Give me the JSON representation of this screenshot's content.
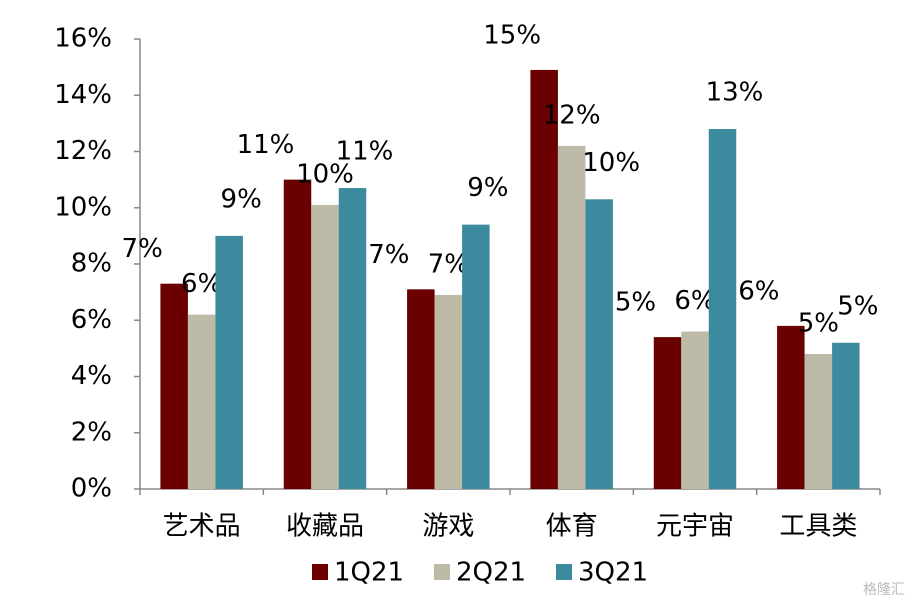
{
  "chart_data": {
    "type": "bar",
    "categories": [
      "艺术品",
      "收藏品",
      "游戏",
      "体育",
      "元宇宙",
      "工具类"
    ],
    "series": [
      {
        "name": "1Q21",
        "color": "#6b0000",
        "values": [
          7.3,
          11.0,
          7.1,
          14.9,
          5.4,
          5.8
        ],
        "value_labels": [
          "7%",
          "11%",
          "7%",
          "15%",
          "5%",
          "6%"
        ]
      },
      {
        "name": "2Q21",
        "color": "#bdbaa8",
        "values": [
          6.2,
          10.1,
          6.9,
          12.2,
          5.6,
          4.8
        ],
        "value_labels": [
          "6%",
          "10%",
          "7%",
          "12%",
          "6%",
          "5%"
        ]
      },
      {
        "name": "3Q21",
        "color": "#3c8a9e",
        "values": [
          9.0,
          10.7,
          9.4,
          10.3,
          12.8,
          5.2
        ],
        "value_labels": [
          "9%",
          "11%",
          "9%",
          "10%",
          "13%",
          "5%"
        ]
      }
    ],
    "ylim": [
      0,
      16
    ],
    "yticks": [
      {
        "value": 0,
        "label": "0%"
      },
      {
        "value": 2,
        "label": "2%"
      },
      {
        "value": 4,
        "label": "4%"
      },
      {
        "value": 6,
        "label": "6%"
      },
      {
        "value": 8,
        "label": "8%"
      },
      {
        "value": 10,
        "label": "10%"
      },
      {
        "value": 12,
        "label": "12%"
      },
      {
        "value": 14,
        "label": "14%"
      },
      {
        "value": 16,
        "label": "16%"
      }
    ],
    "grid": false,
    "legend": "bottom",
    "watermark": "格隆汇"
  }
}
